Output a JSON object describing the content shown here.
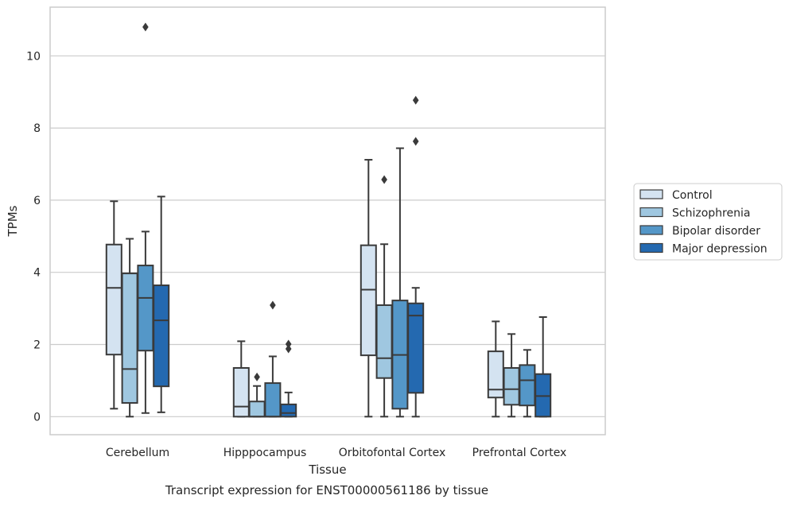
{
  "chart_data": {
    "type": "box",
    "caption": "Transcript expression for ENST00000561186 by tissue",
    "xlabel": "Tissue",
    "ylabel": "TPMs",
    "ylim": [
      -0.5,
      11.35
    ],
    "yticks": [
      0,
      2,
      4,
      6,
      8,
      10
    ],
    "grid": "horizontal",
    "legend_position": "right",
    "categories": [
      "Cerebellum",
      "Hipppocampus",
      "Orbitofontal Cortex",
      "Prefrontal Cortex"
    ],
    "series": [
      {
        "name": "Control",
        "color": "#d4e3f1",
        "boxes": [
          {
            "whislo": 0.22,
            "q1": 1.72,
            "med": 3.57,
            "q3": 4.77,
            "whishi": 5.97,
            "fliers": []
          },
          {
            "whislo": 0.0,
            "q1": 0.0,
            "med": 0.28,
            "q3": 1.35,
            "whishi": 2.09,
            "fliers": []
          },
          {
            "whislo": 0.0,
            "q1": 1.7,
            "med": 3.52,
            "q3": 4.75,
            "whishi": 7.12,
            "fliers": []
          },
          {
            "whislo": 0.0,
            "q1": 0.53,
            "med": 0.75,
            "q3": 1.81,
            "whishi": 2.64,
            "fliers": []
          }
        ]
      },
      {
        "name": "Schizophrenia",
        "color": "#9fc7e0",
        "boxes": [
          {
            "whislo": 0.0,
            "q1": 0.38,
            "med": 1.32,
            "q3": 3.97,
            "whishi": 4.93,
            "fliers": []
          },
          {
            "whislo": 0.0,
            "q1": 0.0,
            "med": 0.0,
            "q3": 0.42,
            "whishi": 0.85,
            "fliers": [
              1.1
            ]
          },
          {
            "whislo": 0.0,
            "q1": 1.07,
            "med": 1.62,
            "q3": 3.09,
            "whishi": 4.78,
            "fliers": [
              6.57
            ]
          },
          {
            "whislo": 0.0,
            "q1": 0.33,
            "med": 0.76,
            "q3": 1.35,
            "whishi": 2.29,
            "fliers": []
          }
        ]
      },
      {
        "name": "Bipolar disorder",
        "color": "#5497c8",
        "boxes": [
          {
            "whislo": 0.1,
            "q1": 1.83,
            "med": 3.29,
            "q3": 4.19,
            "whishi": 5.13,
            "fliers": [
              10.8
            ]
          },
          {
            "whislo": 0.0,
            "q1": 0.0,
            "med": 0.0,
            "q3": 0.93,
            "whishi": 1.67,
            "fliers": [
              3.09
            ]
          },
          {
            "whislo": 0.0,
            "q1": 0.22,
            "med": 1.71,
            "q3": 3.22,
            "whishi": 7.44,
            "fliers": []
          },
          {
            "whislo": 0.0,
            "q1": 0.31,
            "med": 1.01,
            "q3": 1.43,
            "whishi": 1.85,
            "fliers": []
          }
        ]
      },
      {
        "name": "Major depression",
        "color": "#2469b0",
        "boxes": [
          {
            "whislo": 0.12,
            "q1": 0.84,
            "med": 2.67,
            "q3": 3.64,
            "whishi": 6.1,
            "fliers": []
          },
          {
            "whislo": 0.0,
            "q1": 0.0,
            "med": 0.1,
            "q3": 0.34,
            "whishi": 0.67,
            "fliers": [
              1.88,
              2.01
            ]
          },
          {
            "whislo": 0.0,
            "q1": 0.66,
            "med": 2.8,
            "q3": 3.14,
            "whishi": 3.57,
            "fliers": [
              7.63,
              8.77
            ]
          },
          {
            "whislo": 0.0,
            "q1": 0.0,
            "med": 0.57,
            "q3": 1.18,
            "whishi": 2.76,
            "fliers": []
          }
        ]
      }
    ]
  }
}
